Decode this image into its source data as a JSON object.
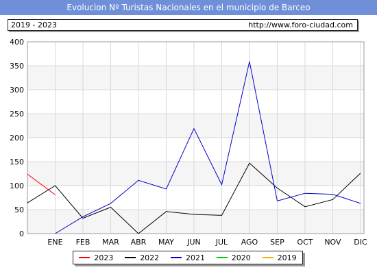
{
  "header": {
    "title": "Evolucion Nº Turistas Nacionales en el municipio de Barceo",
    "period": "2019 - 2023",
    "url": "http://www.foro-ciudad.com"
  },
  "chart_data": {
    "type": "line",
    "categories": [
      "ENE",
      "FEB",
      "MAR",
      "ABR",
      "MAY",
      "JUN",
      "JUL",
      "AGO",
      "SEP",
      "OCT",
      "NOV",
      "DIC"
    ],
    "ylim": [
      0,
      400
    ],
    "yticks": [
      0,
      50,
      100,
      150,
      200,
      250,
      300,
      350,
      400
    ],
    "grid": true,
    "legend_position": "bottom",
    "series": [
      {
        "name": "2023",
        "color": "#ff0000",
        "x": [
          -1,
          0
        ],
        "values": [
          124,
          81
        ]
      },
      {
        "name": "2022",
        "color": "#000000",
        "x": [
          -1,
          0,
          1,
          2,
          3,
          4,
          5,
          6,
          7,
          8,
          9,
          10,
          11
        ],
        "values": [
          64,
          100,
          32,
          55,
          0,
          46,
          40,
          38,
          147,
          95,
          56,
          71,
          126
        ]
      },
      {
        "name": "2021",
        "color": "#0000cc",
        "x": [
          0,
          1,
          2,
          3,
          4,
          5,
          6,
          7,
          8,
          9,
          10,
          11
        ],
        "values": [
          0,
          35,
          63,
          111,
          93,
          219,
          102,
          359,
          68,
          84,
          82,
          63
        ]
      },
      {
        "name": "2020",
        "color": "#00cc00",
        "x": [],
        "values": []
      },
      {
        "name": "2019",
        "color": "#ffa500",
        "x": [],
        "values": []
      }
    ]
  }
}
